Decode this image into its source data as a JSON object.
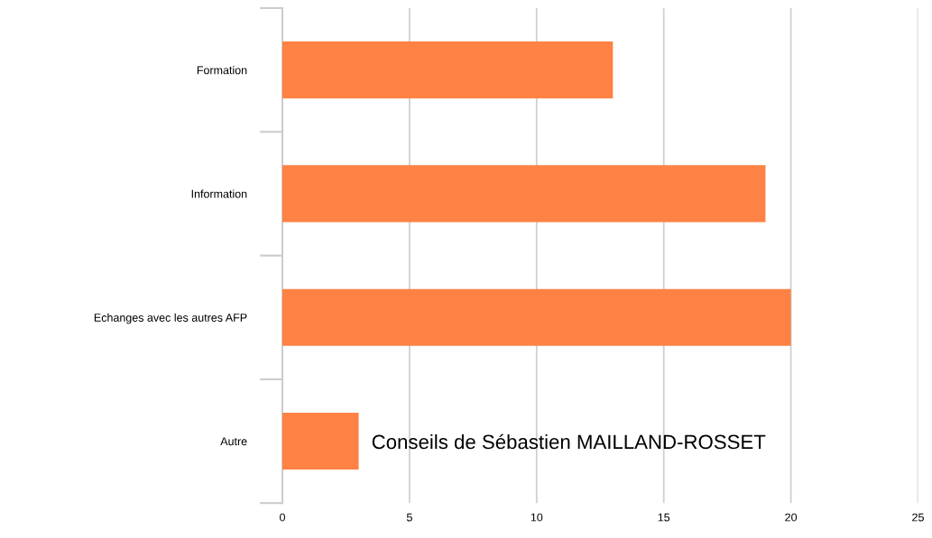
{
  "chart_data": {
    "type": "bar",
    "orientation": "horizontal",
    "categories": [
      "Formation",
      "Information",
      "Echanges avec les autres AFP",
      "Autre"
    ],
    "values": [
      13,
      19,
      20,
      3
    ],
    "color": "#fd8244",
    "xlim": [
      0,
      25
    ],
    "xticks": [
      0,
      5,
      10,
      15,
      20,
      25
    ],
    "grid": "x",
    "annotations": [
      "Conseils de Sébastien MAILLAND-ROSSET"
    ]
  }
}
